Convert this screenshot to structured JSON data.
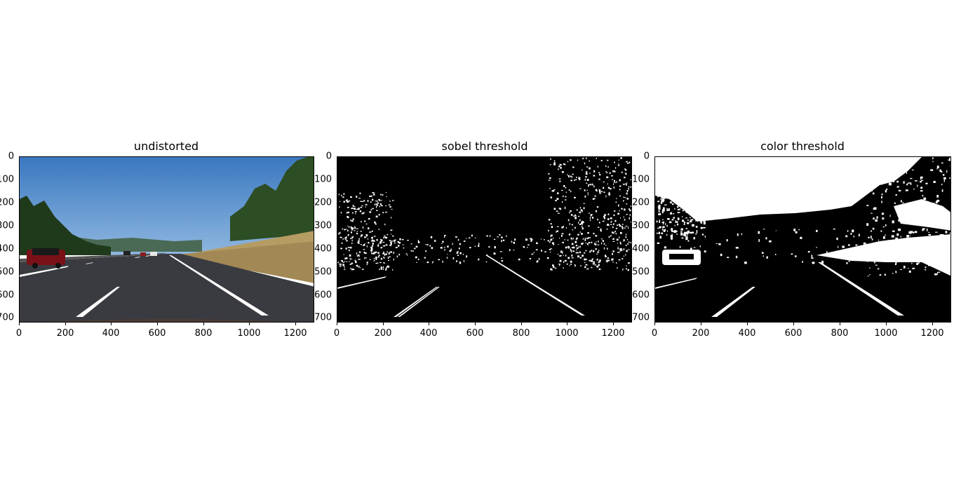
{
  "figure": {
    "panels": [
      {
        "id": "undistorted",
        "title": "undistorted"
      },
      {
        "id": "sobel",
        "title": "sobel threshold"
      },
      {
        "id": "color",
        "title": "color threshold"
      }
    ],
    "x_ticks": [
      "0",
      "200",
      "400",
      "600",
      "800",
      "1000",
      "1200"
    ],
    "y_ticks": [
      "0",
      "100",
      "200",
      "300",
      "400",
      "500",
      "600",
      "700"
    ],
    "y_ticks_visible_text": [
      "0",
      "100",
      "200",
      "300",
      "400",
      "500",
      "600",
      "700"
    ]
  },
  "colors": {
    "sky": "#4a86c8",
    "road": "#3a3b40",
    "grass": "#b59c63",
    "trees": "#2b4a24",
    "binary_fg": "#ffffff",
    "binary_bg": "#000000"
  }
}
